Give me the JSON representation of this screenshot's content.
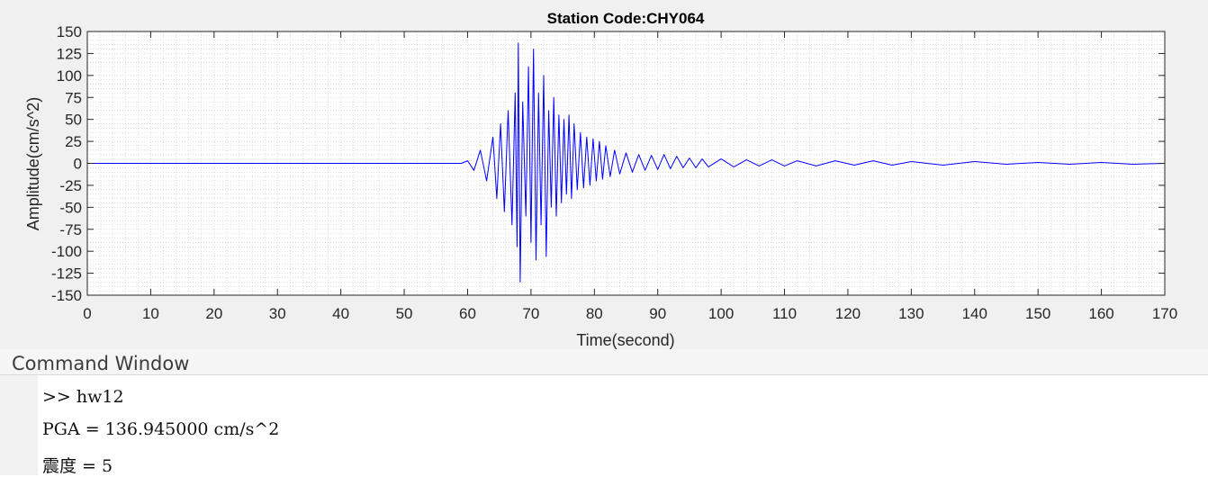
{
  "figure": {
    "title": "Station Code:CHY064",
    "trace_color": "#0000ff"
  },
  "chart_data": {
    "type": "line",
    "title": "Station Code:CHY064",
    "xlabel": "Time(second)",
    "ylabel": "Amplitude(cm/s^2)",
    "xlim": [
      0,
      170
    ],
    "ylim": [
      -150,
      150
    ],
    "xticks": [
      0,
      10,
      20,
      30,
      40,
      50,
      60,
      70,
      80,
      90,
      100,
      110,
      120,
      130,
      140,
      150,
      160,
      170
    ],
    "yticks": [
      150,
      125,
      100,
      75,
      50,
      25,
      0,
      -25,
      -50,
      -75,
      -100,
      -125,
      -150
    ],
    "grid": "minor dotted",
    "series": [
      {
        "color": "#0000ff",
        "x": [
          0,
          59,
          60,
          61,
          62,
          63,
          64,
          64.6,
          65.2,
          65.8,
          66.4,
          67,
          67.5,
          67.8,
          68,
          68.3,
          68.7,
          69.2,
          69.6,
          70,
          70.4,
          70.8,
          71.2,
          71.6,
          72,
          72.4,
          72.8,
          73.2,
          73.6,
          74,
          74.4,
          74.8,
          75.2,
          75.6,
          76,
          76.4,
          76.8,
          77.3,
          77.8,
          78.3,
          78.8,
          79.3,
          79.8,
          80.3,
          80.8,
          81.3,
          81.8,
          82.5,
          83.2,
          84,
          85,
          86,
          87,
          88,
          89,
          90,
          91,
          92,
          93,
          94,
          95,
          96,
          97,
          98,
          100,
          102,
          104,
          106,
          108,
          110,
          112,
          115,
          118,
          121,
          124,
          127,
          130,
          135,
          140,
          145,
          150,
          155,
          160,
          165,
          170
        ],
        "y": [
          0,
          0,
          3,
          -8,
          15,
          -20,
          30,
          -40,
          45,
          -55,
          60,
          -70,
          80,
          -95,
          137,
          -135,
          70,
          -60,
          110,
          -90,
          130,
          -110,
          80,
          -70,
          100,
          -106,
          60,
          -50,
          75,
          -60,
          55,
          -45,
          50,
          -35,
          55,
          -40,
          45,
          -30,
          35,
          -28,
          30,
          -25,
          28,
          -20,
          25,
          -18,
          20,
          -15,
          15,
          -12,
          12,
          -10,
          10,
          -8,
          9,
          -7,
          10,
          -6,
          8,
          -5,
          6,
          -5,
          5,
          -4,
          5,
          -4,
          4,
          -3,
          4,
          -3,
          3,
          -3,
          3,
          -2,
          3,
          -2,
          2,
          -2,
          2,
          -1,
          1,
          -1,
          1,
          -1,
          0
        ]
      }
    ]
  },
  "command_window": {
    "title": "Command Window",
    "lines": [
      ">> hw12",
      "PGA = 136.945000 cm/s^2",
      "震度 = 5"
    ]
  }
}
